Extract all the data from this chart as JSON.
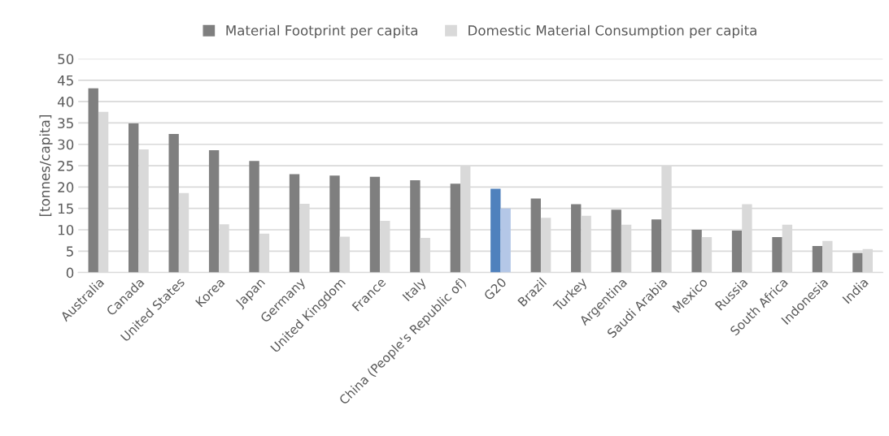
{
  "chart_data": {
    "type": "bar",
    "ylabel": "[tonnes/capita]",
    "categories": [
      "Australia",
      "Canada",
      "United States",
      "Korea",
      "Japan",
      "Germany",
      "United Kingdom",
      "France",
      "Italy",
      "China (People's Republic of)",
      "G20",
      "Brazil",
      "Turkey",
      "Argentina",
      "Saudi Arabia",
      "Mexico",
      "Russia",
      "South Africa",
      "Indonesia",
      "India"
    ],
    "series": [
      {
        "name": "Material Footprint per capita",
        "color": "#7f7f7f",
        "colors": [
          "#7f7f7f",
          "#7f7f7f",
          "#7f7f7f",
          "#7f7f7f",
          "#7f7f7f",
          "#7f7f7f",
          "#7f7f7f",
          "#7f7f7f",
          "#7f7f7f",
          "#7f7f7f",
          "#4f81bd",
          "#7f7f7f",
          "#7f7f7f",
          "#7f7f7f",
          "#7f7f7f",
          "#7f7f7f",
          "#7f7f7f",
          "#7f7f7f",
          "#7f7f7f",
          "#7f7f7f"
        ],
        "values": [
          43.1,
          34.9,
          32.4,
          28.6,
          26.1,
          23.0,
          22.7,
          22.4,
          21.6,
          20.8,
          19.6,
          17.3,
          16.0,
          14.7,
          12.4,
          10.0,
          9.8,
          8.3,
          6.2,
          4.6
        ]
      },
      {
        "name": "Domestic Material Consumption per capita",
        "color": "#d9d9d9",
        "colors": [
          "#d9d9d9",
          "#d9d9d9",
          "#d9d9d9",
          "#d9d9d9",
          "#d9d9d9",
          "#d9d9d9",
          "#d9d9d9",
          "#d9d9d9",
          "#d9d9d9",
          "#d9d9d9",
          "#b4c7e7",
          "#d9d9d9",
          "#d9d9d9",
          "#d9d9d9",
          "#d9d9d9",
          "#d9d9d9",
          "#d9d9d9",
          "#d9d9d9",
          "#d9d9d9",
          "#d9d9d9"
        ],
        "values": [
          37.6,
          28.8,
          18.6,
          11.3,
          9.1,
          16.1,
          8.4,
          12.1,
          8.1,
          24.8,
          15.0,
          12.8,
          13.3,
          11.2,
          24.8,
          8.3,
          16.0,
          11.2,
          7.4,
          5.5
        ]
      }
    ],
    "ylim": [
      0,
      50
    ],
    "yticks": [
      0,
      5,
      10,
      15,
      20,
      25,
      30,
      35,
      40,
      45,
      50
    ],
    "grid": "y",
    "legend": "top"
  }
}
